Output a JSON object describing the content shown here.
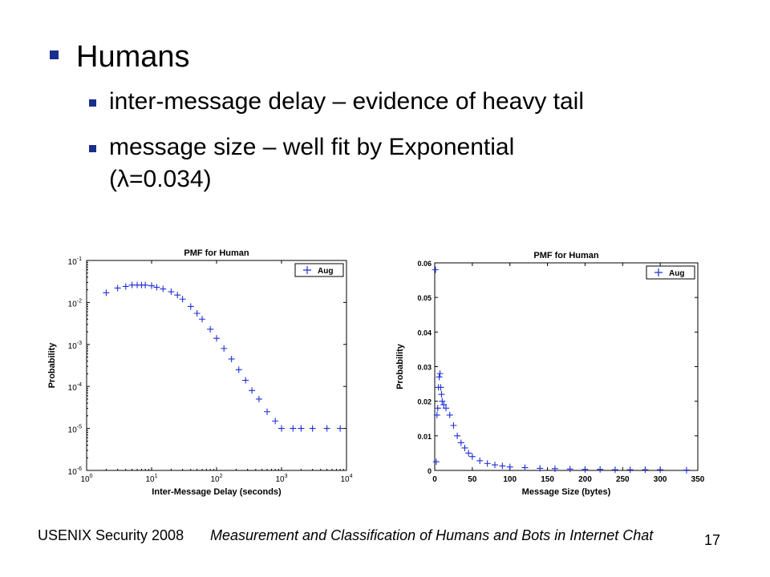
{
  "slide": {
    "bullet": "Humans",
    "subbullets": [
      "inter-message delay – evidence of heavy tail",
      "message size – well fit by Exponential",
      "(λ=0.034)"
    ]
  },
  "footer": {
    "left": "USENIX Security 2008",
    "center": "Measurement and Classification of Humans and Bots in Internet Chat",
    "page": "17"
  },
  "colors": {
    "marker": "#1f2fd8",
    "bullet": "#1a2e8c"
  },
  "chart_data": [
    {
      "type": "scatter",
      "title": "PMF for Human",
      "xlabel": "Inter-Message Delay (seconds)",
      "ylabel": "Probability",
      "xscale": "log",
      "yscale": "log",
      "xlim": [
        1,
        10000
      ],
      "ylim": [
        1e-06,
        0.1
      ],
      "xticks": [
        {
          "v": 1,
          "base": "10",
          "exp": "0"
        },
        {
          "v": 10,
          "base": "10",
          "exp": "1"
        },
        {
          "v": 100,
          "base": "10",
          "exp": "2"
        },
        {
          "v": 1000,
          "base": "10",
          "exp": "3"
        },
        {
          "v": 10000,
          "base": "10",
          "exp": "4"
        }
      ],
      "yticks": [
        {
          "v": 0.1,
          "base": "10",
          "exp": "-1"
        },
        {
          "v": 0.01,
          "base": "10",
          "exp": "-2"
        },
        {
          "v": 0.001,
          "base": "10",
          "exp": "-3"
        },
        {
          "v": 0.0001,
          "base": "10",
          "exp": "-4"
        },
        {
          "v": 1e-05,
          "base": "10",
          "exp": "-5"
        },
        {
          "v": 1e-06,
          "base": "10",
          "exp": "-6"
        }
      ],
      "legend": {
        "label": "Aug",
        "placement": "top-right"
      },
      "series": [
        {
          "name": "Aug",
          "marker": "+",
          "x": [
            2,
            3,
            4,
            5,
            6,
            7,
            8,
            10,
            12,
            15,
            20,
            25,
            30,
            40,
            50,
            60,
            80,
            100,
            130,
            170,
            220,
            280,
            350,
            450,
            600,
            800,
            1000,
            1500,
            2000,
            3000,
            5000,
            8000
          ],
          "y": [
            0.017,
            0.022,
            0.024,
            0.026,
            0.026,
            0.026,
            0.026,
            0.025,
            0.023,
            0.021,
            0.018,
            0.015,
            0.012,
            0.008,
            0.0055,
            0.004,
            0.0023,
            0.0014,
            0.0008,
            0.00045,
            0.00025,
            0.00014,
            8e-05,
            5e-05,
            2.5e-05,
            1.5e-05,
            1e-05,
            1e-05,
            1e-05,
            1e-05,
            1e-05,
            1e-05
          ]
        }
      ]
    },
    {
      "type": "scatter",
      "title": "PMF for Human",
      "xlabel": "Message Size (bytes)",
      "ylabel": "Probability",
      "xlim": [
        0,
        350
      ],
      "ylim": [
        0,
        0.06
      ],
      "xticks": [
        0,
        50,
        100,
        150,
        200,
        250,
        300,
        350
      ],
      "yticks": [
        0,
        0.01,
        0.02,
        0.03,
        0.04,
        0.05,
        0.06
      ],
      "legend": {
        "label": "Aug",
        "placement": "top-right"
      },
      "series": [
        {
          "name": "Aug",
          "marker": "+",
          "x": [
            1,
            2,
            3,
            4,
            5,
            6,
            7,
            8,
            9,
            10,
            12,
            15,
            20,
            25,
            30,
            35,
            40,
            45,
            50,
            60,
            70,
            80,
            90,
            100,
            120,
            140,
            160,
            180,
            200,
            220,
            240,
            260,
            280,
            300,
            335
          ],
          "y": [
            0.058,
            0.0025,
            0.016,
            0.018,
            0.024,
            0.027,
            0.028,
            0.024,
            0.022,
            0.02,
            0.019,
            0.018,
            0.016,
            0.013,
            0.01,
            0.008,
            0.0065,
            0.005,
            0.004,
            0.0028,
            0.002,
            0.0016,
            0.0013,
            0.001,
            0.0008,
            0.0006,
            0.0005,
            0.0004,
            0.0003,
            0.0003,
            0.0002,
            0.0002,
            0.0002,
            0.0002,
            0.0001
          ]
        }
      ]
    }
  ]
}
